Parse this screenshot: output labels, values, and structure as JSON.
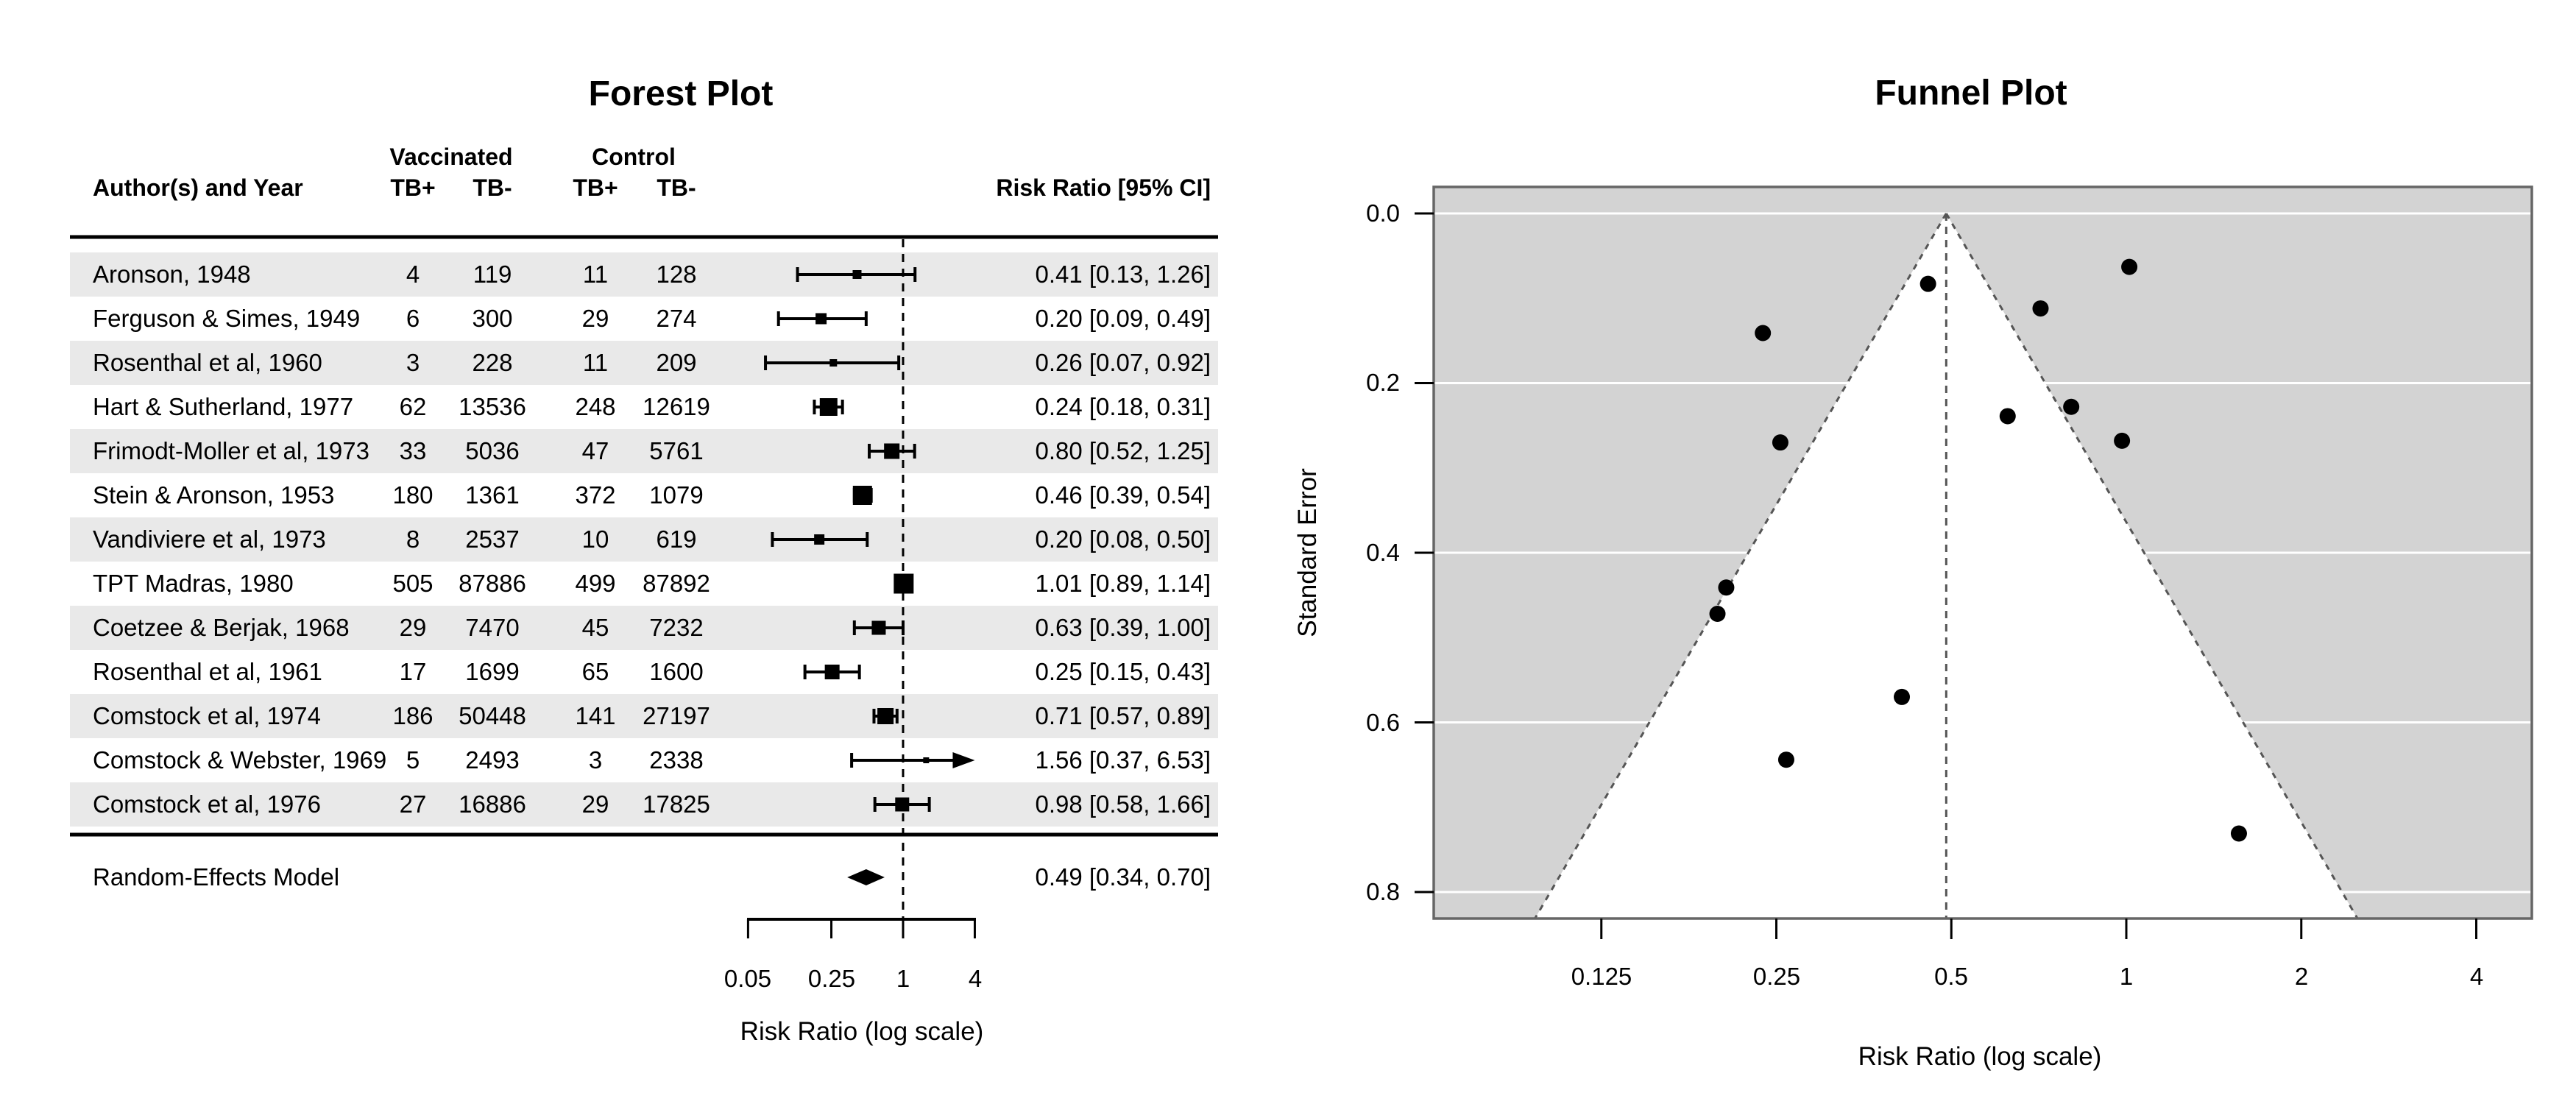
{
  "chart_data": [
    {
      "type": "forest",
      "title": "Forest Plot",
      "xlabel": "Risk Ratio (log scale)",
      "headers": {
        "author": "Author(s) and Year",
        "group1": "Vaccinated",
        "group2": "Control",
        "sub": [
          "TB+",
          "TB-",
          "TB+",
          "TB-"
        ],
        "annotation": "Risk Ratio [95% CI]"
      },
      "xticks": [
        0.05,
        0.25,
        1,
        4
      ],
      "xtick_labels": [
        "0.05",
        "0.25",
        "1",
        "4"
      ],
      "xlim_log": [
        0.05,
        4
      ],
      "refline": 1,
      "colors": {
        "band": "#e9e9e9",
        "marker": "#000000"
      },
      "studies": [
        {
          "author": "Aronson, 1948",
          "tpos": 4,
          "tneg": 119,
          "cpos": 11,
          "cneg": 128,
          "rr": 0.411,
          "lb": 0.13,
          "ub": 1.26,
          "annotation": "0.41 [0.13, 1.26]",
          "size": 12,
          "arrow": false
        },
        {
          "author": "Ferguson & Simes, 1949",
          "tpos": 6,
          "tneg": 300,
          "cpos": 29,
          "cneg": 274,
          "rr": 0.205,
          "lb": 0.09,
          "ub": 0.49,
          "annotation": "0.20 [0.09, 0.49]",
          "size": 15,
          "arrow": false
        },
        {
          "author": "Rosenthal et al, 1960",
          "tpos": 3,
          "tneg": 228,
          "cpos": 11,
          "cneg": 209,
          "rr": 0.26,
          "lb": 0.07,
          "ub": 0.92,
          "annotation": "0.26 [0.07, 0.92]",
          "size": 10,
          "arrow": false
        },
        {
          "author": "Hart & Sutherland, 1977",
          "tpos": 62,
          "tneg": 13536,
          "cpos": 248,
          "cneg": 12619,
          "rr": 0.237,
          "lb": 0.18,
          "ub": 0.31,
          "annotation": "0.24 [0.18, 0.31]",
          "size": 24,
          "arrow": false
        },
        {
          "author": "Frimodt-Moller et al, 1973",
          "tpos": 33,
          "tneg": 5036,
          "cpos": 47,
          "cneg": 5761,
          "rr": 0.804,
          "lb": 0.52,
          "ub": 1.25,
          "annotation": "0.80 [0.52, 1.25]",
          "size": 21,
          "arrow": false
        },
        {
          "author": "Stein & Aronson, 1953",
          "tpos": 180,
          "tneg": 1361,
          "cpos": 372,
          "cneg": 1079,
          "rr": 0.456,
          "lb": 0.39,
          "ub": 0.54,
          "annotation": "0.46 [0.39, 0.54]",
          "size": 26,
          "arrow": false
        },
        {
          "author": "Vandiviere et al, 1973",
          "tpos": 8,
          "tneg": 2537,
          "cpos": 10,
          "cneg": 619,
          "rr": 0.198,
          "lb": 0.08,
          "ub": 0.5,
          "annotation": "0.20 [0.08, 0.50]",
          "size": 14,
          "arrow": false
        },
        {
          "author": "TPT Madras, 1980",
          "tpos": 505,
          "tneg": 87886,
          "cpos": 499,
          "cneg": 87892,
          "rr": 1.012,
          "lb": 0.89,
          "ub": 1.14,
          "annotation": "1.01 [0.89, 1.14]",
          "size": 27,
          "arrow": false
        },
        {
          "author": "Coetzee & Berjak, 1968",
          "tpos": 29,
          "tneg": 7470,
          "cpos": 45,
          "cneg": 7232,
          "rr": 0.625,
          "lb": 0.39,
          "ub": 1.0,
          "annotation": "0.63 [0.39, 1.00]",
          "size": 19,
          "arrow": false
        },
        {
          "author": "Rosenthal et al, 1961",
          "tpos": 17,
          "tneg": 1699,
          "cpos": 65,
          "cneg": 1600,
          "rr": 0.254,
          "lb": 0.15,
          "ub": 0.43,
          "annotation": "0.25 [0.15, 0.43]",
          "size": 20,
          "arrow": false
        },
        {
          "author": "Comstock et al, 1974",
          "tpos": 186,
          "tneg": 50448,
          "cpos": 141,
          "cneg": 27197,
          "rr": 0.712,
          "lb": 0.57,
          "ub": 0.89,
          "annotation": "0.71 [0.57, 0.89]",
          "size": 22,
          "arrow": false
        },
        {
          "author": "Comstock & Webster, 1969",
          "tpos": 5,
          "tneg": 2493,
          "cpos": 3,
          "cneg": 2338,
          "rr": 1.562,
          "lb": 0.37,
          "ub": 6.53,
          "annotation": "1.56 [0.37, 6.53]",
          "size": 8,
          "arrow": true
        },
        {
          "author": "Comstock et al, 1976",
          "tpos": 27,
          "tneg": 16886,
          "cpos": 29,
          "cneg": 17825,
          "rr": 0.983,
          "lb": 0.58,
          "ub": 1.66,
          "annotation": "0.98 [0.58, 1.66]",
          "size": 19,
          "arrow": false
        }
      ],
      "summary": {
        "label": "Random-Effects Model",
        "rr": 0.49,
        "lb": 0.34,
        "ub": 0.7,
        "annotation": "0.49 [0.34, 0.70]"
      }
    },
    {
      "type": "funnel",
      "title": "Funnel Plot",
      "xlabel": "Risk Ratio (log scale)",
      "ylabel": "Standard Error",
      "xticks": [
        0.125,
        0.25,
        0.5,
        1,
        2,
        4
      ],
      "xtick_labels": [
        "0.125",
        "0.25",
        "0.5",
        "1",
        "2",
        "4"
      ],
      "yticks": [
        0.0,
        0.2,
        0.4,
        0.6,
        0.8
      ],
      "ytick_labels": [
        "0.0",
        "0.2",
        "0.4",
        "0.6",
        "0.8"
      ],
      "ylim": [
        0,
        0.8
      ],
      "center": 0.49,
      "ci_level_z": 1.96,
      "colors": {
        "back": "#d3d3d3",
        "shade": "#ffffff",
        "hlines": "#ffffff",
        "points": "#000000"
      },
      "points": [
        {
          "rr": 0.411,
          "se": 0.57
        },
        {
          "rr": 0.205,
          "se": 0.441
        },
        {
          "rr": 0.26,
          "se": 0.644
        },
        {
          "rr": 0.237,
          "se": 0.141
        },
        {
          "rr": 0.804,
          "se": 0.228
        },
        {
          "rr": 0.456,
          "se": 0.083
        },
        {
          "rr": 0.198,
          "se": 0.472
        },
        {
          "rr": 1.012,
          "se": 0.063
        },
        {
          "rr": 0.625,
          "se": 0.239
        },
        {
          "rr": 0.254,
          "se": 0.27
        },
        {
          "rr": 0.712,
          "se": 0.112
        },
        {
          "rr": 1.562,
          "se": 0.731
        },
        {
          "rr": 0.983,
          "se": 0.268
        }
      ]
    }
  ]
}
